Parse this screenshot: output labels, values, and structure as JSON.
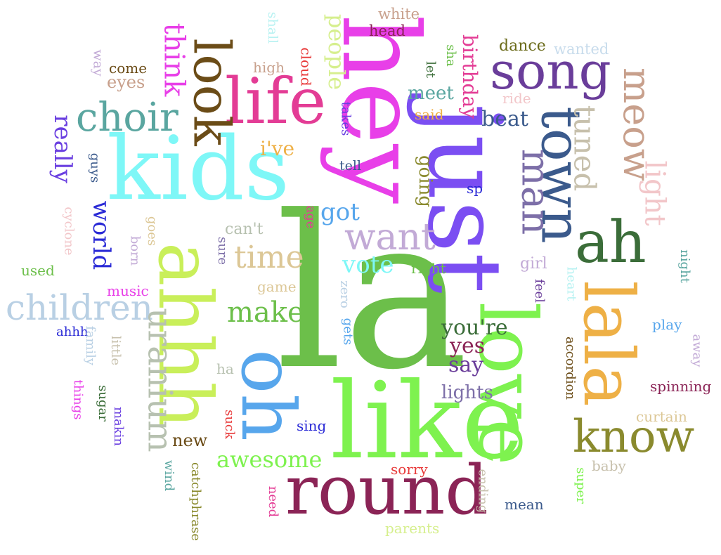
{
  "words": [
    {
      "text": "la",
      "color": "#6cbf4a",
      "vertical": false
    },
    {
      "text": "hey",
      "color": "#e83fe8",
      "vertical": true
    },
    {
      "text": "just",
      "color": "#7b4ef2",
      "vertical": true
    },
    {
      "text": "like",
      "color": "#7ef24f",
      "vertical": false
    },
    {
      "text": "love",
      "color": "#7ef24f",
      "vertical": true
    },
    {
      "text": "kids",
      "color": "#7ef7f7",
      "vertical": false
    },
    {
      "text": "ahhh",
      "color": "#c9ef5a",
      "vertical": true
    },
    {
      "text": "oh",
      "color": "#57a6ec",
      "vertical": true
    },
    {
      "text": "round",
      "color": "#8b2456",
      "vertical": false
    },
    {
      "text": "lala",
      "color": "#eeb046",
      "vertical": true
    },
    {
      "text": "life",
      "color": "#e33c95",
      "vertical": false
    },
    {
      "text": "look",
      "color": "#6b4c17",
      "vertical": true
    },
    {
      "text": "town",
      "color": "#3b5a8c",
      "vertical": true
    },
    {
      "text": "song",
      "color": "#6a3d9a",
      "vertical": false
    },
    {
      "text": "ah",
      "color": "#3b6d39",
      "vertical": false
    },
    {
      "text": "know",
      "color": "#8a8a2e",
      "vertical": false
    },
    {
      "text": "man",
      "color": "#7d6fa8",
      "vertical": true
    },
    {
      "text": "meow",
      "color": "#c8a08c",
      "vertical": true
    },
    {
      "text": "choir",
      "color": "#5aa6a0",
      "vertical": false
    },
    {
      "text": "children",
      "color": "#b9d0e4",
      "vertical": false
    },
    {
      "text": "want",
      "color": "#c2aad6",
      "vertical": false
    },
    {
      "text": "uranium",
      "color": "#b7c1b0",
      "vertical": true
    },
    {
      "text": "tuned",
      "color": "#c7c0ac",
      "vertical": true
    },
    {
      "text": "light",
      "color": "#f2c6c9",
      "vertical": true
    },
    {
      "text": "think",
      "color": "#e83fe8",
      "vertical": true
    },
    {
      "text": "time",
      "color": "#dcc796",
      "vertical": false
    },
    {
      "text": "make",
      "color": "#6cbf4a",
      "vertical": false
    },
    {
      "text": "awesome",
      "color": "#7ef24f",
      "vertical": false
    },
    {
      "text": "people",
      "color": "#d6ef8e",
      "vertical": true
    },
    {
      "text": "really",
      "color": "#6a3fe0",
      "vertical": true
    },
    {
      "text": "world",
      "color": "#2a2ad6",
      "vertical": true
    },
    {
      "text": "beat",
      "color": "#3b5a8c",
      "vertical": false
    },
    {
      "text": "got",
      "color": "#57a6ec",
      "vertical": false
    },
    {
      "text": "vote",
      "color": "#7ef7f7",
      "vertical": false
    },
    {
      "text": "you're",
      "color": "#3b6d39",
      "vertical": false
    },
    {
      "text": "yes",
      "color": "#8b2456",
      "vertical": false
    },
    {
      "text": "say",
      "color": "#6a3d9a",
      "vertical": false
    },
    {
      "text": "lights",
      "color": "#7d6fa8",
      "vertical": false
    },
    {
      "text": "birthday",
      "color": "#e33c95",
      "vertical": true
    },
    {
      "text": "meet",
      "color": "#5aa6a0",
      "vertical": false
    },
    {
      "text": "i've",
      "color": "#eeb046",
      "vertical": false
    },
    {
      "text": "going",
      "color": "#8a8a2e",
      "vertical": true
    },
    {
      "text": "eyes",
      "color": "#c8a08c",
      "vertical": false
    },
    {
      "text": "dance",
      "color": "#6b6b1a",
      "vertical": false
    },
    {
      "text": "wanted",
      "color": "#c8dcec",
      "vertical": false
    },
    {
      "text": "white",
      "color": "#c8a08c",
      "vertical": false
    },
    {
      "text": "head",
      "color": "#8b2456",
      "vertical": false
    },
    {
      "text": "come",
      "color": "#6b4c17",
      "vertical": false
    },
    {
      "text": "high",
      "color": "#c8a08c",
      "vertical": false
    },
    {
      "text": "cloud",
      "color": "#e83a3a",
      "vertical": true
    },
    {
      "text": "shall",
      "color": "#b8f2f2",
      "vertical": true
    },
    {
      "text": "way",
      "color": "#c2aad6",
      "vertical": true
    },
    {
      "text": "let",
      "color": "#3b6d39",
      "vertical": true
    },
    {
      "text": "sha",
      "color": "#6cbf4a",
      "vertical": true
    },
    {
      "text": "said",
      "color": "#eeb046",
      "vertical": false
    },
    {
      "text": "ride",
      "color": "#f2c6c9",
      "vertical": false
    },
    {
      "text": "takes",
      "color": "#6a3fe0",
      "vertical": true
    },
    {
      "text": "tell",
      "color": "#3b5a8c",
      "vertical": false
    },
    {
      "text": "sp",
      "color": "#2a2ad6",
      "vertical": false
    },
    {
      "text": "guys",
      "color": "#3b5a8c",
      "vertical": true
    },
    {
      "text": "cyclone",
      "color": "#f2c6c9",
      "vertical": true
    },
    {
      "text": "goes",
      "color": "#dcc796",
      "vertical": true
    },
    {
      "text": "born",
      "color": "#c2aad6",
      "vertical": true
    },
    {
      "text": "age",
      "color": "#e33c95",
      "vertical": true
    },
    {
      "text": "can't",
      "color": "#b7c1b0",
      "vertical": false
    },
    {
      "text": "sure",
      "color": "#7d6fa8",
      "vertical": true
    },
    {
      "text": "game",
      "color": "#dcc796",
      "vertical": false
    },
    {
      "text": "zero",
      "color": "#b9d0e4",
      "vertical": true
    },
    {
      "text": "gets",
      "color": "#57a6ec",
      "vertical": true
    },
    {
      "text": "right",
      "color": "#6cbf4a",
      "vertical": false
    },
    {
      "text": "girl",
      "color": "#c2aad6",
      "vertical": false
    },
    {
      "text": "feel",
      "color": "#6a3d9a",
      "vertical": true
    },
    {
      "text": "heart",
      "color": "#b8f2f2",
      "vertical": true
    },
    {
      "text": "night",
      "color": "#5aa6a0",
      "vertical": true
    },
    {
      "text": "used",
      "color": "#6cbf4a",
      "vertical": false
    },
    {
      "text": "music",
      "color": "#e83fe8",
      "vertical": false
    },
    {
      "text": "ahhh",
      "color": "#2a2ad6",
      "vertical": false
    },
    {
      "text": "family",
      "color": "#b9d0e4",
      "vertical": true
    },
    {
      "text": "little",
      "color": "#c7c0ac",
      "vertical": true
    },
    {
      "text": "ha",
      "color": "#b7c1b0",
      "vertical": false
    },
    {
      "text": "things",
      "color": "#e83fe8",
      "vertical": true
    },
    {
      "text": "sugar",
      "color": "#3b6d39",
      "vertical": true
    },
    {
      "text": "makin",
      "color": "#6a3fe0",
      "vertical": true
    },
    {
      "text": "suck",
      "color": "#e83a3a",
      "vertical": true
    },
    {
      "text": "sing",
      "color": "#2a2ad6",
      "vertical": false
    },
    {
      "text": "new",
      "color": "#6b4c17",
      "vertical": false
    },
    {
      "text": "accordion",
      "color": "#6b4c17",
      "vertical": true
    },
    {
      "text": "play",
      "color": "#57a6ec",
      "vertical": false
    },
    {
      "text": "away",
      "color": "#c2aad6",
      "vertical": true
    },
    {
      "text": "spinning",
      "color": "#8b2456",
      "vertical": false
    },
    {
      "text": "curtain",
      "color": "#dcc796",
      "vertical": false
    },
    {
      "text": "baby",
      "color": "#c7c0ac",
      "vertical": false
    },
    {
      "text": "super",
      "color": "#7ef24f",
      "vertical": true
    },
    {
      "text": "mean",
      "color": "#3b5a8c",
      "vertical": false
    },
    {
      "text": "ending",
      "color": "#c7c0ac",
      "vertical": true
    },
    {
      "text": "sorry",
      "color": "#e83a3a",
      "vertical": false
    },
    {
      "text": "parents",
      "color": "#d6ef8e",
      "vertical": false
    },
    {
      "text": "need",
      "color": "#e33c95",
      "vertical": true
    },
    {
      "text": "catchphrase",
      "color": "#8a8a2e",
      "vertical": true
    },
    {
      "text": "wind",
      "color": "#5aa6a0",
      "vertical": true
    }
  ]
}
